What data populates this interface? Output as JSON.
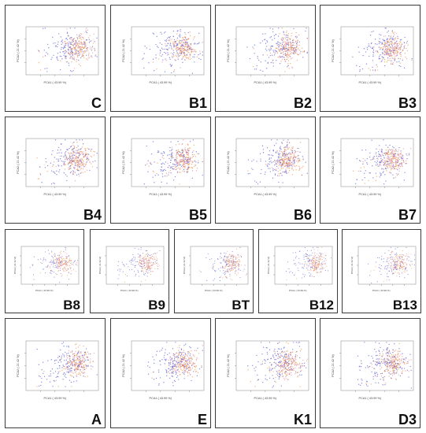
{
  "panels": [
    {
      "label": "C"
    },
    {
      "label": "B1"
    },
    {
      "label": "B2"
    },
    {
      "label": "B3"
    },
    {
      "label": "B4"
    },
    {
      "label": "B5"
    },
    {
      "label": "B6"
    },
    {
      "label": "B7"
    },
    {
      "label": "B8"
    },
    {
      "label": "B9"
    },
    {
      "label": "BT"
    },
    {
      "label": "B12"
    },
    {
      "label": "B13"
    },
    {
      "label": "A"
    },
    {
      "label": "E"
    },
    {
      "label": "K1"
    },
    {
      "label": "D3"
    }
  ],
  "chart_data": {
    "type": "scatter",
    "xlabel": "PCA1 ( 43.99 %)",
    "ylabel": "PCA2 ( 21.42 %)",
    "legend": "none",
    "grid": false,
    "colors": {
      "blue": "#6f6fd8",
      "orange": "#f0a060",
      "pink": "#e89aa8",
      "red": "#c85050"
    },
    "point_groups": [
      "blue",
      "orange",
      "pink",
      "red"
    ]
  }
}
